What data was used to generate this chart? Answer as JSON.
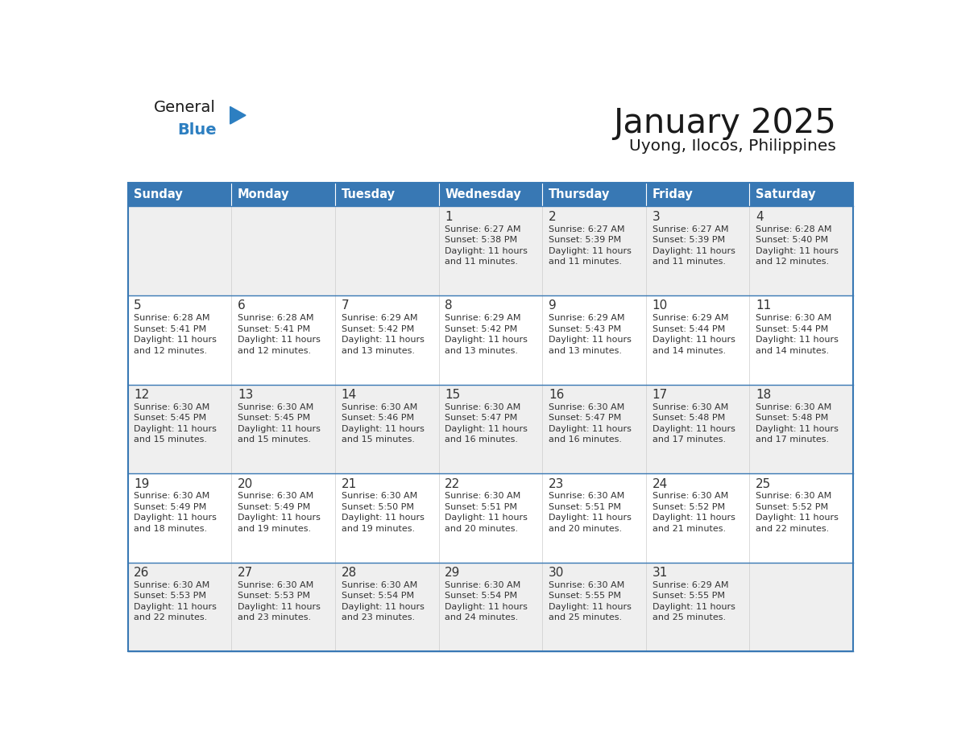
{
  "title": "January 2025",
  "subtitle": "Uyong, Ilocos, Philippines",
  "days_of_week": [
    "Sunday",
    "Monday",
    "Tuesday",
    "Wednesday",
    "Thursday",
    "Friday",
    "Saturday"
  ],
  "header_bg_color": "#3878b4",
  "header_text_color": "#ffffff",
  "cell_bg_color_light": "#efefef",
  "cell_bg_color_white": "#ffffff",
  "border_color": "#3878b4",
  "day_number_color": "#333333",
  "cell_text_color": "#333333",
  "logo_general_color": "#1a1a1a",
  "logo_blue_color": "#2d7fc1",
  "calendar_data": [
    [
      {
        "day": null,
        "sunrise": null,
        "sunset": null,
        "daylight": null
      },
      {
        "day": null,
        "sunrise": null,
        "sunset": null,
        "daylight": null
      },
      {
        "day": null,
        "sunrise": null,
        "sunset": null,
        "daylight": null
      },
      {
        "day": 1,
        "sunrise": "6:27 AM",
        "sunset": "5:38 PM",
        "daylight": "11 hours and 11 minutes."
      },
      {
        "day": 2,
        "sunrise": "6:27 AM",
        "sunset": "5:39 PM",
        "daylight": "11 hours and 11 minutes."
      },
      {
        "day": 3,
        "sunrise": "6:27 AM",
        "sunset": "5:39 PM",
        "daylight": "11 hours and 11 minutes."
      },
      {
        "day": 4,
        "sunrise": "6:28 AM",
        "sunset": "5:40 PM",
        "daylight": "11 hours and 12 minutes."
      }
    ],
    [
      {
        "day": 5,
        "sunrise": "6:28 AM",
        "sunset": "5:41 PM",
        "daylight": "11 hours and 12 minutes."
      },
      {
        "day": 6,
        "sunrise": "6:28 AM",
        "sunset": "5:41 PM",
        "daylight": "11 hours and 12 minutes."
      },
      {
        "day": 7,
        "sunrise": "6:29 AM",
        "sunset": "5:42 PM",
        "daylight": "11 hours and 13 minutes."
      },
      {
        "day": 8,
        "sunrise": "6:29 AM",
        "sunset": "5:42 PM",
        "daylight": "11 hours and 13 minutes."
      },
      {
        "day": 9,
        "sunrise": "6:29 AM",
        "sunset": "5:43 PM",
        "daylight": "11 hours and 13 minutes."
      },
      {
        "day": 10,
        "sunrise": "6:29 AM",
        "sunset": "5:44 PM",
        "daylight": "11 hours and 14 minutes."
      },
      {
        "day": 11,
        "sunrise": "6:30 AM",
        "sunset": "5:44 PM",
        "daylight": "11 hours and 14 minutes."
      }
    ],
    [
      {
        "day": 12,
        "sunrise": "6:30 AM",
        "sunset": "5:45 PM",
        "daylight": "11 hours and 15 minutes."
      },
      {
        "day": 13,
        "sunrise": "6:30 AM",
        "sunset": "5:45 PM",
        "daylight": "11 hours and 15 minutes."
      },
      {
        "day": 14,
        "sunrise": "6:30 AM",
        "sunset": "5:46 PM",
        "daylight": "11 hours and 15 minutes."
      },
      {
        "day": 15,
        "sunrise": "6:30 AM",
        "sunset": "5:47 PM",
        "daylight": "11 hours and 16 minutes."
      },
      {
        "day": 16,
        "sunrise": "6:30 AM",
        "sunset": "5:47 PM",
        "daylight": "11 hours and 16 minutes."
      },
      {
        "day": 17,
        "sunrise": "6:30 AM",
        "sunset": "5:48 PM",
        "daylight": "11 hours and 17 minutes."
      },
      {
        "day": 18,
        "sunrise": "6:30 AM",
        "sunset": "5:48 PM",
        "daylight": "11 hours and 17 minutes."
      }
    ],
    [
      {
        "day": 19,
        "sunrise": "6:30 AM",
        "sunset": "5:49 PM",
        "daylight": "11 hours and 18 minutes."
      },
      {
        "day": 20,
        "sunrise": "6:30 AM",
        "sunset": "5:49 PM",
        "daylight": "11 hours and 19 minutes."
      },
      {
        "day": 21,
        "sunrise": "6:30 AM",
        "sunset": "5:50 PM",
        "daylight": "11 hours and 19 minutes."
      },
      {
        "day": 22,
        "sunrise": "6:30 AM",
        "sunset": "5:51 PM",
        "daylight": "11 hours and 20 minutes."
      },
      {
        "day": 23,
        "sunrise": "6:30 AM",
        "sunset": "5:51 PM",
        "daylight": "11 hours and 20 minutes."
      },
      {
        "day": 24,
        "sunrise": "6:30 AM",
        "sunset": "5:52 PM",
        "daylight": "11 hours and 21 minutes."
      },
      {
        "day": 25,
        "sunrise": "6:30 AM",
        "sunset": "5:52 PM",
        "daylight": "11 hours and 22 minutes."
      }
    ],
    [
      {
        "day": 26,
        "sunrise": "6:30 AM",
        "sunset": "5:53 PM",
        "daylight": "11 hours and 22 minutes."
      },
      {
        "day": 27,
        "sunrise": "6:30 AM",
        "sunset": "5:53 PM",
        "daylight": "11 hours and 23 minutes."
      },
      {
        "day": 28,
        "sunrise": "6:30 AM",
        "sunset": "5:54 PM",
        "daylight": "11 hours and 23 minutes."
      },
      {
        "day": 29,
        "sunrise": "6:30 AM",
        "sunset": "5:54 PM",
        "daylight": "11 hours and 24 minutes."
      },
      {
        "day": 30,
        "sunrise": "6:30 AM",
        "sunset": "5:55 PM",
        "daylight": "11 hours and 25 minutes."
      },
      {
        "day": 31,
        "sunrise": "6:29 AM",
        "sunset": "5:55 PM",
        "daylight": "11 hours and 25 minutes."
      },
      {
        "day": null,
        "sunrise": null,
        "sunset": null,
        "daylight": null
      }
    ]
  ]
}
